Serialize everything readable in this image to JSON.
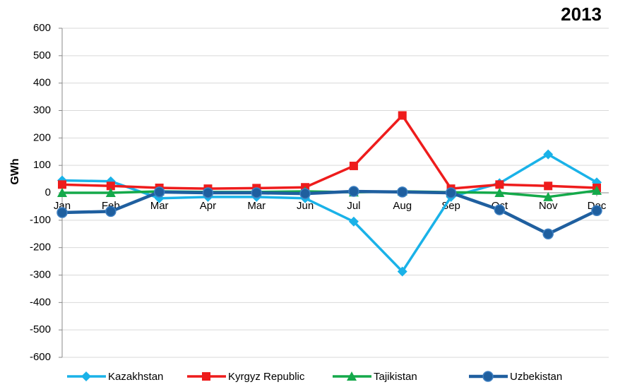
{
  "chart_data": {
    "type": "line",
    "title": "2013",
    "y_label": "GWh",
    "categories": [
      "Jan",
      "Feb",
      "Mar",
      "Apr",
      "Mar",
      "Jun",
      "Jul",
      "Aug",
      "Sep",
      "Oct",
      "Nov",
      "Dec"
    ],
    "series": [
      {
        "name": "Kazakhstan",
        "color": "#1ab2e8",
        "marker": "diamond",
        "values": [
          45,
          42,
          -20,
          -15,
          -15,
          -20,
          -105,
          -287,
          -15,
          35,
          140,
          38
        ]
      },
      {
        "name": "Kyrgyz Republic",
        "color": "#ee1c1c",
        "marker": "square",
        "values": [
          30,
          25,
          18,
          15,
          17,
          20,
          98,
          282,
          15,
          30,
          25,
          18
        ]
      },
      {
        "name": "Tajikistan",
        "color": "#14a94a",
        "marker": "triangle",
        "values": [
          0,
          0,
          5,
          3,
          3,
          5,
          2,
          5,
          2,
          0,
          -15,
          8
        ]
      },
      {
        "name": "Uzbekistan",
        "color": "#1f5f9f",
        "marker": "circle",
        "values": [
          -72,
          -68,
          3,
          0,
          0,
          -3,
          5,
          3,
          0,
          -62,
          -150,
          -65
        ]
      }
    ],
    "ylim": [
      -600,
      600
    ],
    "yticks": [
      -600,
      -500,
      -400,
      -300,
      -200,
      -100,
      0,
      100,
      200,
      300,
      400,
      500,
      600
    ],
    "grid": true,
    "legend": "bottom"
  }
}
